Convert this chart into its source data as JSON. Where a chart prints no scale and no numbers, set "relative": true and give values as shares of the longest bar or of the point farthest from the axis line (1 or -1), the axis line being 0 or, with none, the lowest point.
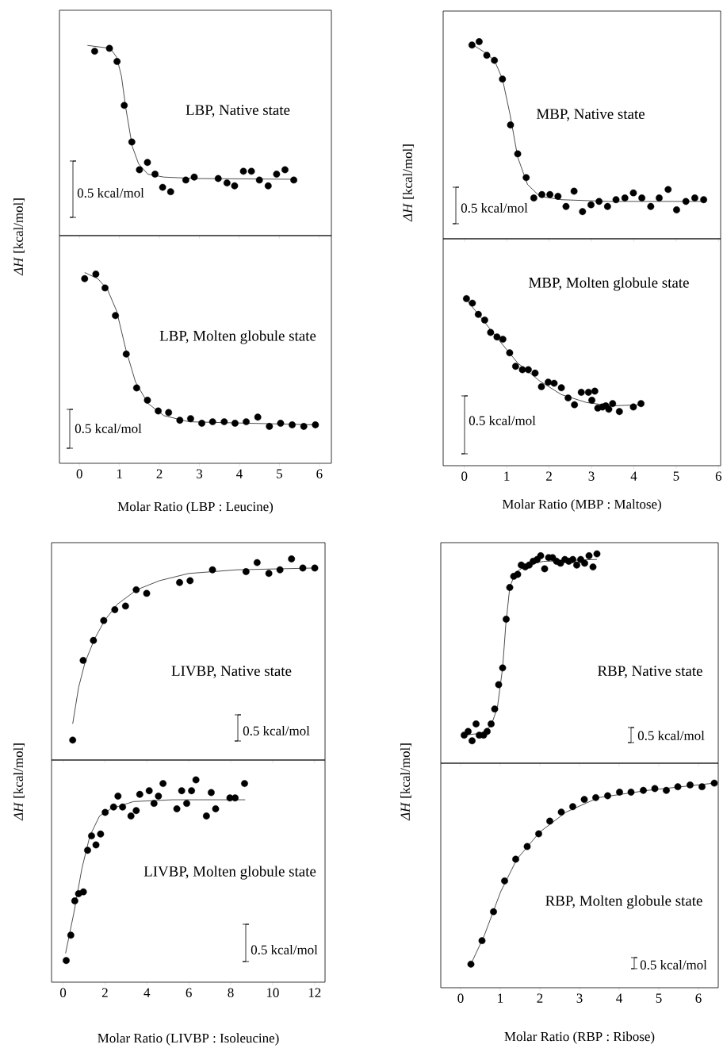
{
  "chart_data": [
    {
      "type": "scatter",
      "title": "LBP, Native state",
      "relative": true,
      "xlim": [
        -0.5,
        6.3
      ],
      "xticks": [
        0,
        1,
        2,
        3,
        4,
        5,
        6
      ],
      "tick_labels": false,
      "annotations": [
        "0.5 kcal/mol"
      ],
      "series": [
        {
          "marker": "circle",
          "color": "#000000",
          "x": [
            0.38,
            0.75,
            0.94,
            1.12,
            1.31,
            1.5,
            1.7,
            1.89,
            2.08,
            2.28,
            2.66,
            2.87,
            3.47,
            3.69,
            3.88,
            4.1,
            4.3,
            4.5,
            4.72,
            4.93,
            5.14,
            5.36
          ],
          "values": [
            0.96,
            0.98,
            0.89,
            0.59,
            0.34,
            0.15,
            0.2,
            0.12,
            0.03,
            0,
            0.08,
            0.1,
            0.09,
            0.06,
            0.04,
            0.14,
            0.14,
            0.08,
            0.04,
            0.12,
            0.15,
            0.08
          ]
        },
        {
          "type": "line",
          "color": "#000000",
          "x": [
            0.2,
            0.77,
            0.93,
            1.05,
            1.16,
            1.32,
            1.48,
            1.71,
            2.11,
            2.97,
            5.37
          ],
          "values": [
            1.0,
            0.98,
            0.92,
            0.79,
            0.57,
            0.31,
            0.19,
            0.12,
            0.1,
            0.09,
            0.085
          ]
        }
      ]
    },
    {
      "type": "scatter",
      "title": "LBP, Molten globule state",
      "xlabel": "Molar Ratio (LBP : Leucine)",
      "ylabel": "*ΔH* [kcal/mol]",
      "relative": true,
      "xlim": [
        -0.5,
        6.3
      ],
      "xticks": [
        0,
        1,
        2,
        3,
        4,
        5,
        6
      ],
      "tick_labels": "x",
      "annotations": [
        "0.5 kcal/mol"
      ],
      "series": [
        {
          "marker": "circle",
          "color": "#000000",
          "x": [
            0.13,
            0.41,
            0.64,
            0.9,
            1.17,
            1.43,
            1.7,
            1.97,
            2.23,
            2.51,
            2.78,
            3.06,
            3.33,
            3.62,
            3.89,
            4.17,
            4.46,
            4.75,
            5.03,
            5.32,
            5.61,
            5.9
          ],
          "values": [
            0.96,
            0.99,
            0.9,
            0.72,
            0.47,
            0.25,
            0.17,
            0.1,
            0.09,
            0.04,
            0.05,
            0.02,
            0.03,
            0.03,
            0.02,
            0.03,
            0.06,
            0,
            0.02,
            0.01,
            0,
            0.01
          ]
        },
        {
          "type": "line",
          "color": "#000000",
          "x": [
            0.13,
            0.46,
            0.7,
            0.93,
            1.16,
            1.4,
            1.71,
            2.11,
            2.74,
            5.9
          ],
          "values": [
            1.0,
            0.96,
            0.89,
            0.75,
            0.5,
            0.29,
            0.15,
            0.07,
            0.03,
            0.01
          ]
        }
      ]
    },
    {
      "type": "scatter",
      "title": "MBP, Native state",
      "relative": true,
      "xlim": [
        -0.5,
        6.05
      ],
      "xticks": [
        0,
        1,
        2,
        3,
        4,
        5,
        6
      ],
      "tick_labels": false,
      "annotations": [
        "0.5 kcal/mol"
      ],
      "series": [
        {
          "marker": "circle",
          "color": "#000000",
          "x": [
            0.18,
            0.35,
            0.53,
            0.71,
            0.9,
            1.09,
            1.26,
            1.46,
            1.64,
            1.83,
            2.02,
            2.21,
            2.4,
            2.59,
            2.79,
            2.99,
            3.18,
            3.38,
            3.58,
            3.79,
            3.99,
            4.19,
            4.4,
            4.6,
            4.81,
            5.01,
            5.23,
            5.44,
            5.65
          ],
          "values": [
            0.98,
            1.0,
            0.92,
            0.89,
            0.78,
            0.51,
            0.34,
            0.2,
            0.08,
            0.1,
            0.1,
            0.09,
            0.03,
            0.12,
            0,
            0.04,
            0.06,
            0.03,
            0.07,
            0.08,
            0.11,
            0.08,
            0.03,
            0.08,
            0.13,
            0.01,
            0.06,
            0.08,
            0.07
          ]
        },
        {
          "type": "line",
          "color": "#000000",
          "x": [
            0.15,
            0.46,
            0.71,
            0.9,
            1.08,
            1.26,
            1.49,
            1.78,
            2.29,
            3.4,
            5.65
          ],
          "values": [
            0.99,
            0.94,
            0.89,
            0.78,
            0.57,
            0.32,
            0.16,
            0.09,
            0.07,
            0.06,
            0.06
          ]
        }
      ]
    },
    {
      "type": "scatter",
      "title": "MBP, Molten globule state",
      "xlabel": "Molar Ratio (MBP : Maltose)",
      "ylabel": "*ΔH* [kcal/mol]",
      "relative": true,
      "xlim": [
        -0.5,
        6.05
      ],
      "xticks": [
        0,
        1,
        2,
        3,
        4,
        5,
        6
      ],
      "tick_labels": "x",
      "annotations": [
        "0.5 kcal/mol"
      ],
      "series": [
        {
          "marker": "circle",
          "color": "#000000",
          "x": [
            0.05,
            0.19,
            0.33,
            0.48,
            0.62,
            0.77,
            0.91,
            1.07,
            1.21,
            1.37,
            1.51,
            1.67,
            1.82,
            1.98,
            2.12,
            2.29,
            2.45,
            2.6,
            2.76,
            2.93,
            3.01,
            3.08,
            3.15,
            3.26,
            3.34,
            3.41,
            3.5,
            3.66,
            3.99,
            4.17
          ],
          "values": [
            1.0,
            0.96,
            0.86,
            0.81,
            0.7,
            0.66,
            0.64,
            0.52,
            0.4,
            0.37,
            0.37,
            0.34,
            0.22,
            0.26,
            0.25,
            0.21,
            0.12,
            0.06,
            0.17,
            0.17,
            0.1,
            0.18,
            0.03,
            0.04,
            0.05,
            0.02,
            0.07,
            0,
            0.04,
            0.07
          ]
        },
        {
          "type": "line",
          "color": "#000000",
          "x": [
            0.05,
            0.46,
            0.82,
            1.26,
            1.78,
            2.29,
            2.88,
            3.47,
            4.17
          ],
          "values": [
            0.99,
            0.8,
            0.63,
            0.43,
            0.27,
            0.15,
            0.08,
            0.05,
            0.06
          ]
        }
      ]
    },
    {
      "type": "scatter",
      "title": "LIVBP, Native state",
      "relative": true,
      "xlim": [
        -0.55,
        12.5
      ],
      "xticks": [
        0,
        2,
        4,
        6,
        8,
        10,
        12
      ],
      "tick_labels": false,
      "annotations": [
        "0.5 kcal/mol"
      ],
      "series": [
        {
          "marker": "circle",
          "color": "#000000",
          "x": [
            0.46,
            0.96,
            1.45,
            1.94,
            2.47,
            2.98,
            3.49,
            3.99,
            5.56,
            6.06,
            7.13,
            8.73,
            9.26,
            9.82,
            10.35,
            10.9,
            11.44,
            12.01
          ],
          "values": [
            0,
            0.44,
            0.55,
            0.66,
            0.72,
            0.74,
            0.83,
            0.81,
            0.87,
            0.88,
            0.94,
            0.93,
            0.98,
            0.92,
            0.94,
            1.0,
            0.95,
            0.95
          ]
        },
        {
          "type": "line",
          "color": "#000000",
          "x": [
            0.46,
            0.74,
            1.05,
            1.51,
            1.98,
            2.59,
            3.52,
            4.6,
            6.0,
            8.3,
            12.01
          ],
          "values": [
            0.09,
            0.29,
            0.43,
            0.56,
            0.66,
            0.75,
            0.83,
            0.88,
            0.92,
            0.94,
            0.95
          ]
        }
      ]
    },
    {
      "type": "scatter",
      "title": "LIVBP, Molten globule state",
      "xlabel": "Molar Ratio (LIVBP : Isoleucine)",
      "ylabel": "*ΔH* [kcal/mol]",
      "relative": true,
      "xlim": [
        -0.55,
        12.5
      ],
      "xticks": [
        0,
        2,
        4,
        6,
        8,
        10,
        12
      ],
      "tick_labels": "x",
      "annotations": [
        "0.5 kcal/mol"
      ],
      "series": [
        {
          "marker": "circle",
          "color": "#000000",
          "x": [
            0.15,
            0.37,
            0.56,
            0.74,
            0.97,
            1.17,
            1.36,
            1.57,
            1.79,
            2.01,
            2.41,
            2.62,
            2.84,
            3.24,
            3.49,
            3.66,
            4.11,
            4.34,
            4.55,
            4.77,
            5.43,
            5.66,
            5.9,
            6.13,
            6.34,
            6.84,
            7.07,
            7.28,
            7.96,
            8.21,
            8.66
          ],
          "values": [
            0,
            0.14,
            0.33,
            0.37,
            0.38,
            0.61,
            0.69,
            0.64,
            0.7,
            0.82,
            0.85,
            0.91,
            0.85,
            0.8,
            0.83,
            0.92,
            0.94,
            0.87,
            0.91,
            0.98,
            0.84,
            0.94,
            0.87,
            0.94,
            1.0,
            0.8,
            0.93,
            0.84,
            0.9,
            0.9,
            0.98
          ]
        },
        {
          "type": "line",
          "color": "#000000",
          "x": [
            0.12,
            0.51,
            0.9,
            1.28,
            1.74,
            2.28,
            3.36,
            5.22,
            8.69
          ],
          "values": [
            0.04,
            0.26,
            0.51,
            0.69,
            0.8,
            0.84,
            0.88,
            0.89,
            0.89
          ]
        }
      ]
    },
    {
      "type": "scatter",
      "title": "RBP, Native state",
      "relative": true,
      "xlim": [
        -0.5,
        6.5
      ],
      "xticks": [
        0,
        1,
        2,
        3,
        4,
        5,
        6
      ],
      "tick_labels": false,
      "annotations": [
        "0.5 kcal/mol"
      ],
      "series": [
        {
          "marker": "circle",
          "color": "#000000",
          "x": [
            0.09,
            0.19,
            0.29,
            0.39,
            0.47,
            0.58,
            0.67,
            0.77,
            0.86,
            0.96,
            1.06,
            1.15,
            1.24,
            1.34,
            1.44,
            1.53,
            1.63,
            1.73,
            1.83,
            1.93,
            2.02,
            2.12,
            2.22,
            2.32,
            2.42,
            2.52,
            2.63,
            2.73,
            2.83,
            2.93,
            3.03,
            3.13,
            3.24,
            3.34,
            3.44
          ],
          "values": [
            0.03,
            0.05,
            0,
            0.09,
            0.03,
            0.03,
            0.05,
            0.09,
            0.17,
            0.3,
            0.39,
            0.65,
            0.82,
            0.88,
            0.89,
            0.94,
            0.93,
            0.94,
            0.96,
            0.97,
            0.99,
            0.92,
            0.98,
            0.98,
            0.96,
            0.95,
            0.97,
            0.96,
            0.97,
            0.94,
            0.97,
            0.95,
            0.99,
            0.93,
            1.0
          ]
        },
        {
          "type": "line",
          "color": "#000000",
          "x": [
            0.07,
            0.52,
            0.77,
            0.93,
            1.06,
            1.14,
            1.24,
            1.38,
            1.67,
            2.09,
            3.44
          ],
          "values": [
            0.03,
            0.04,
            0.08,
            0.18,
            0.39,
            0.62,
            0.82,
            0.9,
            0.94,
            0.96,
            0.97
          ]
        }
      ]
    },
    {
      "type": "scatter",
      "title": "RBP, Molten globule state",
      "xlabel": "Molar Ratio (RBP : Ribose)",
      "ylabel": "*ΔH* [kcal/mol]",
      "relative": true,
      "xlim": [
        -0.5,
        6.5
      ],
      "xticks": [
        0,
        1,
        2,
        3,
        4,
        5,
        6
      ],
      "tick_labels": "x",
      "annotations": [
        "0.5 kcal/mol"
      ],
      "series": [
        {
          "marker": "circle",
          "color": "#000000",
          "x": [
            0.26,
            0.54,
            0.83,
            1.11,
            1.39,
            1.68,
            1.97,
            2.25,
            2.54,
            2.83,
            3.12,
            3.41,
            3.71,
            4.01,
            4.3,
            4.61,
            4.9,
            5.19,
            5.48,
            5.79,
            6.09,
            6.4
          ],
          "values": [
            0,
            0.13,
            0.29,
            0.46,
            0.58,
            0.65,
            0.72,
            0.79,
            0.84,
            0.87,
            0.91,
            0.92,
            0.93,
            0.95,
            0.95,
            0.96,
            0.97,
            0.96,
            0.98,
            0.99,
            0.98,
            1.0
          ]
        },
        {
          "type": "line",
          "color": "#000000",
          "x": [
            0.26,
            0.6,
            1.01,
            1.42,
            2.0,
            2.66,
            3.48,
            4.72,
            6.4
          ],
          "values": [
            0,
            0.16,
            0.4,
            0.58,
            0.73,
            0.84,
            0.92,
            0.96,
            1.0
          ]
        }
      ]
    }
  ]
}
